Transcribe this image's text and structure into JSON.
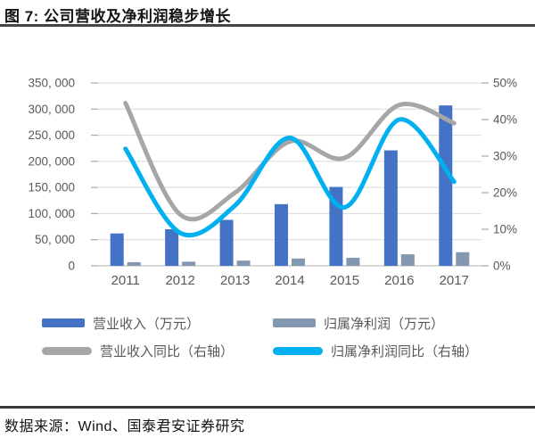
{
  "header": {
    "title": "图 7: 公司营收及净利润稳步增长"
  },
  "footer": {
    "source": "数据来源：Wind、国泰君安证券研究"
  },
  "chart_data": {
    "type": "bar",
    "subtype": "combo-bar-line",
    "categories": [
      "2011",
      "2012",
      "2013",
      "2014",
      "2015",
      "2016",
      "2017"
    ],
    "series": [
      {
        "name": "营业收入（万元）",
        "type": "bar",
        "axis": "left",
        "color": "#4472c4",
        "values": [
          62000,
          70000,
          88000,
          118000,
          151000,
          221000,
          307000
        ]
      },
      {
        "name": "归属净利润（万元）",
        "type": "bar",
        "axis": "left",
        "color": "#8497b0",
        "values": [
          7000,
          8000,
          10000,
          14000,
          15500,
          22000,
          26000
        ]
      },
      {
        "name": "营业收入同比（右轴）",
        "type": "line",
        "axis": "right",
        "color": "#a6a6a6",
        "values": [
          44.5,
          14,
          20,
          34,
          29.5,
          44,
          39
        ]
      },
      {
        "name": "归属净利润同比（右轴）",
        "type": "line",
        "axis": "right",
        "color": "#00b0f0",
        "values": [
          32,
          9,
          16.5,
          35,
          16,
          40,
          23
        ]
      }
    ],
    "left_axis": {
      "min": 0,
      "max": 350000,
      "ticks": [
        "350, 000",
        "300, 000",
        "250, 000",
        "200, 000",
        "150, 000",
        "100, 000",
        "50, 000",
        "0"
      ]
    },
    "right_axis": {
      "min": 0,
      "max": 50,
      "ticks": [
        "50%",
        "40%",
        "30%",
        "20%",
        "10%",
        "0%"
      ]
    },
    "grid": "horizontal",
    "legend_position": "bottom",
    "colors": {
      "gridline": "#d9d9d9",
      "axis_line": "#c3c3c3",
      "tick": "#aeaeae",
      "axis_text": "#595959"
    }
  }
}
